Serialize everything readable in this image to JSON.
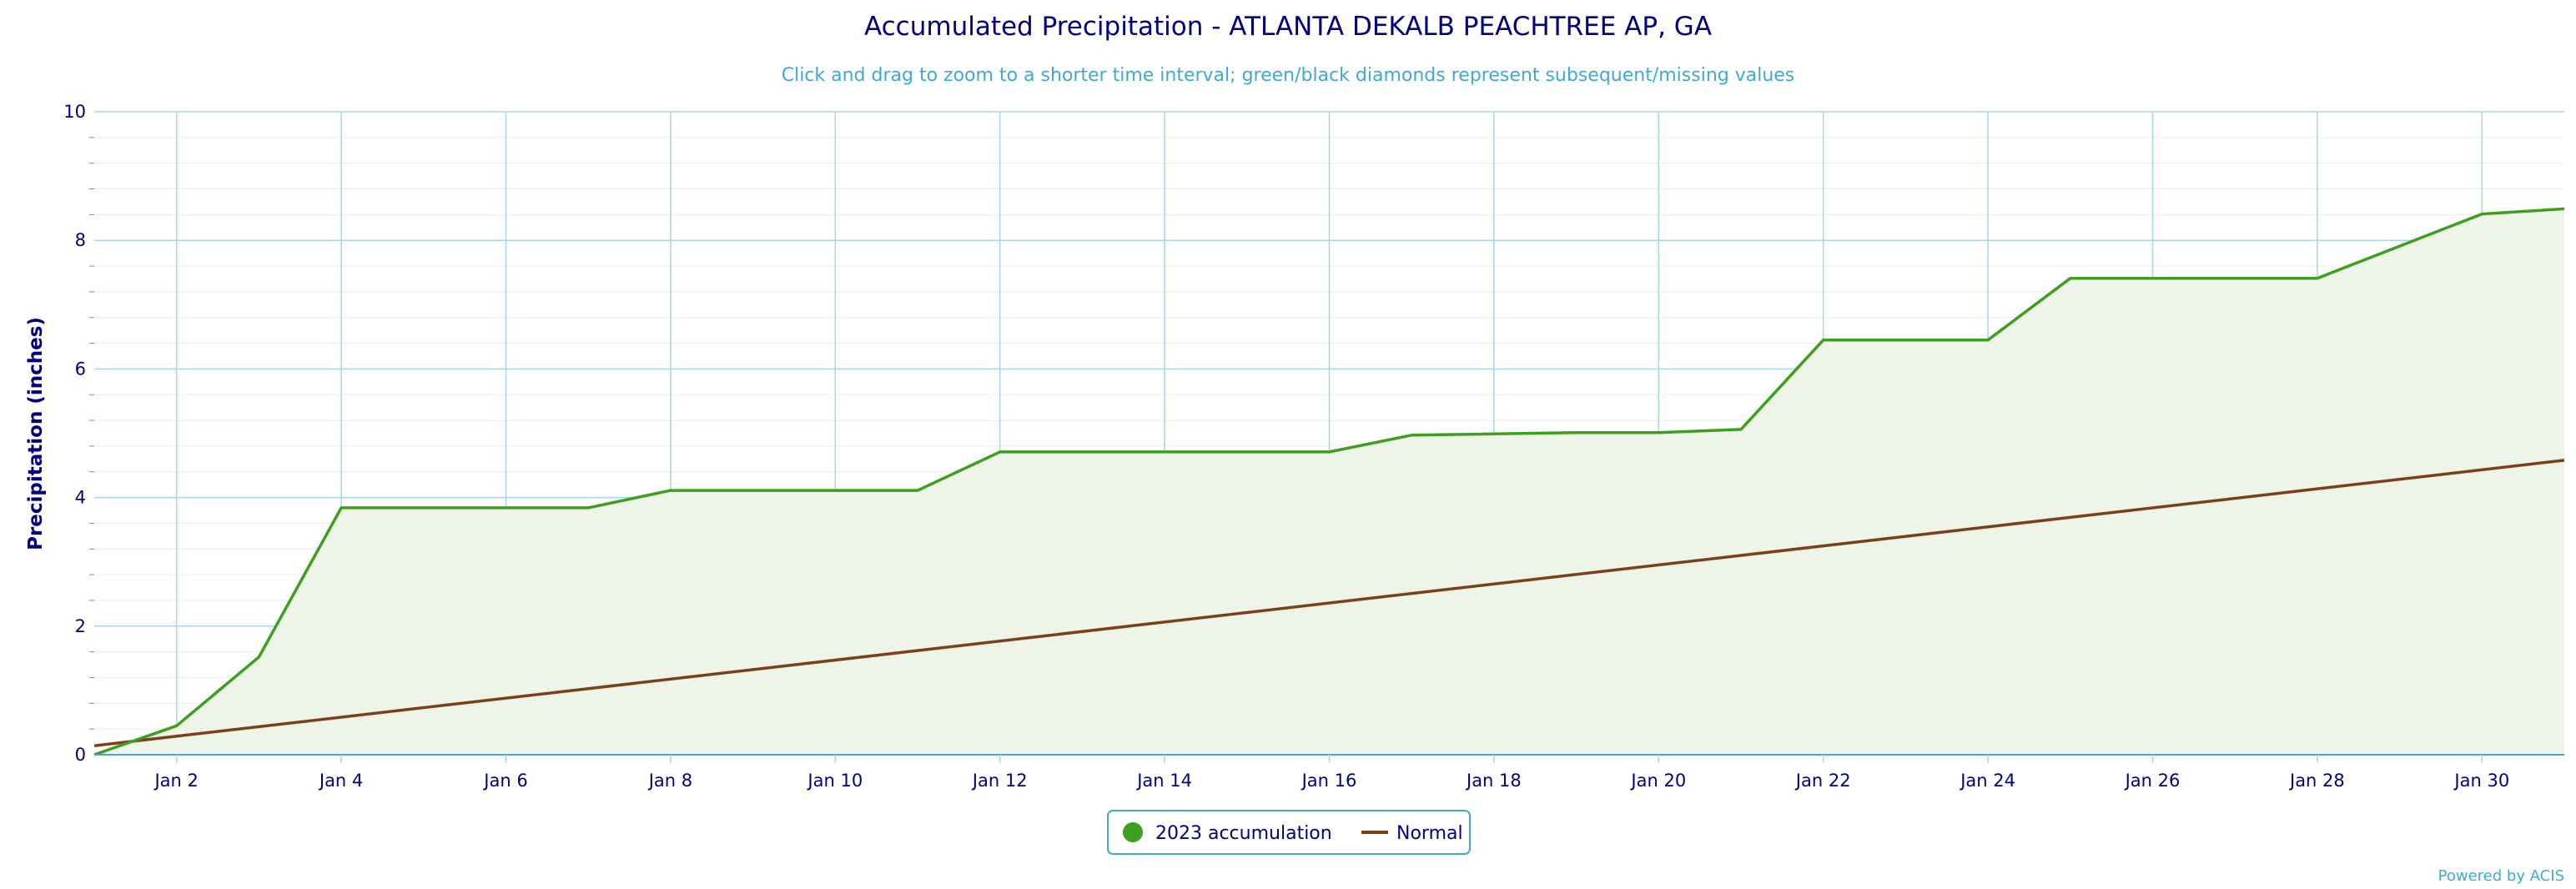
{
  "chart_data": {
    "type": "area",
    "title": "Accumulated Precipitation - ATLANTA DEKALB PEACHTREE AP, GA",
    "subtitle": "Click and drag to zoom to a shorter time interval; green/black diamonds represent subsequent/missing values",
    "ylabel": "Precipitation (inches)",
    "xlabel": "",
    "x_range": [
      "Jan 1",
      "Jan 31"
    ],
    "ylim": [
      0,
      10
    ],
    "y_ticks": [
      0,
      2,
      4,
      6,
      8,
      10
    ],
    "x_ticks": [
      "Jan 2",
      "Jan 4",
      "Jan 6",
      "Jan 8",
      "Jan 10",
      "Jan 12",
      "Jan 14",
      "Jan 16",
      "Jan 18",
      "Jan 20",
      "Jan 22",
      "Jan 24",
      "Jan 26",
      "Jan 28",
      "Jan 30"
    ],
    "grid": true,
    "legend_position": "bottom-center",
    "series": [
      {
        "name": "2023 accumulation",
        "type": "area",
        "color": "#3d9f1d",
        "fill": "#eef5e8",
        "x": [
          "Jan 1",
          "Jan 2",
          "Jan 3",
          "Jan 4",
          "Jan 5",
          "Jan 6",
          "Jan 7",
          "Jan 8",
          "Jan 9",
          "Jan 10",
          "Jan 11",
          "Jan 12",
          "Jan 13",
          "Jan 14",
          "Jan 15",
          "Jan 16",
          "Jan 17",
          "Jan 18",
          "Jan 19",
          "Jan 20",
          "Jan 21",
          "Jan 22",
          "Jan 23",
          "Jan 24",
          "Jan 25",
          "Jan 26",
          "Jan 27",
          "Jan 28",
          "Jan 29",
          "Jan 30",
          "Jan 31"
        ],
        "values": [
          0.0,
          0.45,
          1.52,
          3.84,
          3.84,
          3.84,
          3.84,
          4.11,
          4.11,
          4.11,
          4.11,
          4.71,
          4.71,
          4.71,
          4.71,
          4.71,
          4.97,
          4.99,
          5.01,
          5.01,
          5.06,
          6.45,
          6.45,
          6.45,
          7.41,
          7.41,
          7.41,
          7.41,
          7.91,
          8.41,
          8.49
        ]
      },
      {
        "name": "Normal",
        "type": "line",
        "color": "#7b3f1a",
        "x": [
          "Jan 1",
          "Jan 31"
        ],
        "values": [
          0.14,
          4.58
        ]
      }
    ]
  },
  "credits": "Powered by ACIS",
  "colors": {
    "title": "#000080",
    "subtitle": "#3fa9d6",
    "grid": "#a8d4ec",
    "legend_border": "#3fa9d6"
  }
}
